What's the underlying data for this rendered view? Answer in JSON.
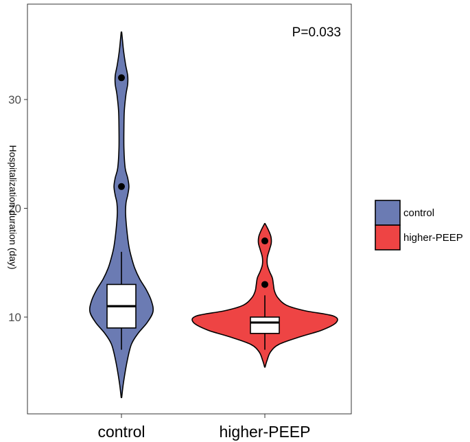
{
  "chart_data": {
    "type": "violin",
    "ylabel": "Hospitalization duration (day)",
    "annotation": "P=0.033",
    "categories": [
      "control",
      "higher-PEEP"
    ],
    "yticks": [
      10,
      20,
      30
    ],
    "ylim": [
      1.5,
      37.5
    ],
    "grid": false,
    "legend": {
      "placement": "right",
      "entries": [
        {
          "label": "control",
          "color": "#6b7bb3"
        },
        {
          "label": "higher-PEEP",
          "color": "#ee4444"
        }
      ]
    },
    "series": [
      {
        "category": "control",
        "color": "#6b7bb3",
        "box": {
          "min": 7,
          "q1": 9,
          "median": 11,
          "q3": 13,
          "max": 16
        },
        "outliers": [
          22,
          32
        ],
        "density_range": [
          2.6,
          36.2
        ],
        "density": [
          [
            2.6,
            0.3
          ],
          [
            4,
            2.5
          ],
          [
            6,
            7
          ],
          [
            7.5,
            12
          ],
          [
            8.5,
            20
          ],
          [
            9.5,
            31
          ],
          [
            10.5,
            38
          ],
          [
            11.5,
            36
          ],
          [
            12.5,
            30
          ],
          [
            13.5,
            22
          ],
          [
            14.5,
            16
          ],
          [
            15.5,
            12
          ],
          [
            16.5,
            9
          ],
          [
            18,
            6.5
          ],
          [
            19.5,
            5
          ],
          [
            20.5,
            5.5
          ],
          [
            21.2,
            7.5
          ],
          [
            22,
            9
          ],
          [
            22.8,
            7.5
          ],
          [
            23.7,
            4.5
          ],
          [
            25.5,
            3
          ],
          [
            27.5,
            3
          ],
          [
            29,
            3.5
          ],
          [
            30.5,
            5.5
          ],
          [
            31.4,
            7.5
          ],
          [
            32.2,
            7.5
          ],
          [
            33.2,
            5
          ],
          [
            34.5,
            2.5
          ],
          [
            35.5,
            1.2
          ],
          [
            36.2,
            0.3
          ]
        ]
      },
      {
        "category": "higher-PEEP",
        "color": "#ee4444",
        "box": {
          "min": 7,
          "q1": 8.5,
          "median": 9.5,
          "q3": 10,
          "max": 12
        },
        "outliers": [
          13,
          17
        ],
        "density_range": [
          5.4,
          18.6
        ],
        "density": [
          [
            5.4,
            0.3
          ],
          [
            6,
            3
          ],
          [
            6.8,
            8
          ],
          [
            7.5,
            20
          ],
          [
            8.2,
            50
          ],
          [
            8.8,
            80
          ],
          [
            9.5,
            100
          ],
          [
            10.1,
            96
          ],
          [
            10.6,
            55
          ],
          [
            11.1,
            30
          ],
          [
            11.8,
            18
          ],
          [
            12.4,
            13.5
          ],
          [
            13,
            12
          ],
          [
            13.6,
            10.5
          ],
          [
            14.2,
            6.5
          ],
          [
            14.8,
            3.5
          ],
          [
            15.5,
            3.5
          ],
          [
            16.2,
            6.5
          ],
          [
            16.8,
            9
          ],
          [
            17.4,
            8.5
          ],
          [
            18,
            5
          ],
          [
            18.6,
            0.3
          ]
        ]
      }
    ]
  }
}
